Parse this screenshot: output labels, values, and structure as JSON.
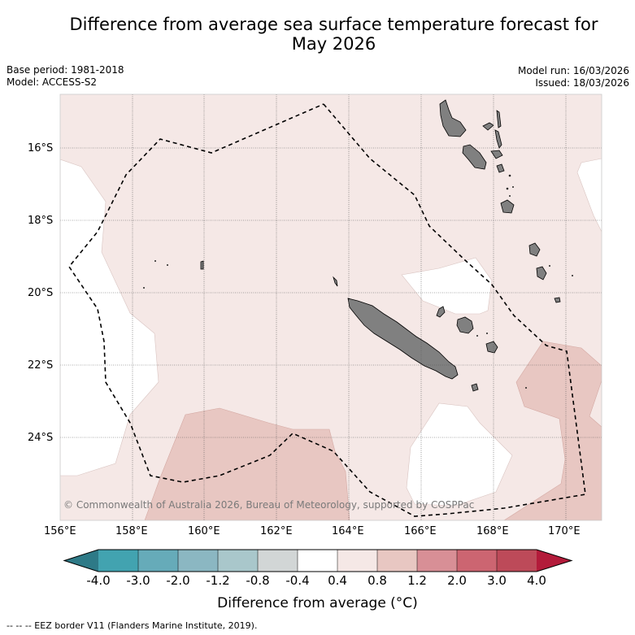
{
  "title_line1": "Difference from average sea surface temperature forecast for",
  "title_line2": "May 2026",
  "base_period": "Base period: 1981-2018",
  "model": "Model: ACCESS-S2",
  "model_run": "Model run: 16/03/2026",
  "issued": "Issued: 18/03/2026",
  "lat_labels": [
    "16°S",
    "18°S",
    "20°S",
    "22°S",
    "24°S"
  ],
  "lon_labels": [
    "156°E",
    "158°E",
    "160°E",
    "162°E",
    "164°E",
    "166°E",
    "168°E",
    "170°E"
  ],
  "copyright": "© Commonwealth of Australia 2026, Bureau of Meteorology, supported by COSPPac",
  "colorbar": {
    "title": "Difference from average (°C)",
    "tick_labels": [
      "-4.0",
      "-3.0",
      "-2.0",
      "-1.2",
      "-0.8",
      "-0.4",
      "0.4",
      "0.8",
      "1.2",
      "2.0",
      "3.0",
      "4.0"
    ],
    "under_color": "#2e7a87",
    "colors": [
      "#42a3b0",
      "#66abb9",
      "#8bb7c2",
      "#a9c7cb",
      "#d2d6d6",
      "#ffffff",
      "#f5e8e6",
      "#e8c7c2",
      "#d88f96",
      "#cc6571",
      "#bd4a59"
    ],
    "over_color": "#b31b3a"
  },
  "legend_line": "--  --  -- EEZ border V11 (Flanders Marine Institute, 2019)."
}
